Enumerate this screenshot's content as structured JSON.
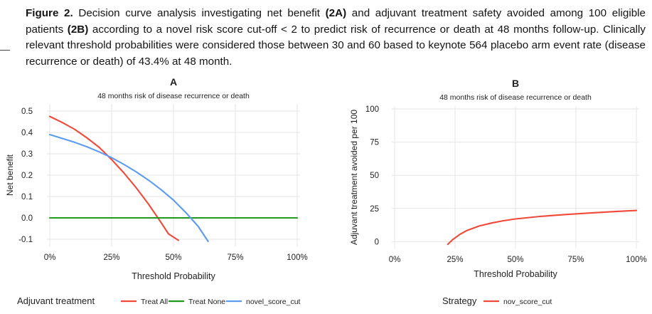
{
  "caption": {
    "figure_label": "Figure 2.",
    "segments": [
      {
        "t": " Decision curve analysis investigating net benefit ",
        "b": false
      },
      {
        "t": "(2A)",
        "b": true
      },
      {
        "t": " and adjuvant treatment safety avoided among 100 eligible patients ",
        "b": false
      },
      {
        "t": "(2B)",
        "b": true
      },
      {
        "t": " according to a novel risk score cut-off < 2 to predict risk of recurrence or death at 48 months follow-up. Clinically relevant threshold probabilities were considered those between 30 and 60 based to keynote 564 placebo arm event rate (disease recurrence or death) of 43.4% at 48 month.",
        "b": false
      }
    ]
  },
  "colors": {
    "treat_all": "#f0493a",
    "treat_none": "#1f9a1f",
    "novel_score_cut": "#5b9cf0",
    "nov_score_cut": "#f0493a",
    "grid": "#e6e6e6"
  },
  "chart_data": [
    {
      "type": "line",
      "panel_letter": "A",
      "title": "48 months risk of disease recurrence or death",
      "xlabel": "Threshold Probability",
      "ylabel": "Net benefit",
      "xlim": [
        0,
        100
      ],
      "ylim": [
        -0.12,
        0.52
      ],
      "x_ticks": [
        0,
        25,
        50,
        75,
        100
      ],
      "x_tick_labels": [
        "0%",
        "25%",
        "50%",
        "75%",
        "100%"
      ],
      "y_ticks": [
        -0.1,
        0.0,
        0.1,
        0.2,
        0.3,
        0.4,
        0.5
      ],
      "y_tick_labels": [
        "-0.1",
        "0.0",
        "0.1",
        "0.2",
        "0.3",
        "0.4",
        "0.5"
      ],
      "grid": true,
      "legend_title": "Adjuvant treatment",
      "legend_position": "bottom",
      "series": [
        {
          "name": "Treat All",
          "color_key": "treat_all",
          "x": [
            0,
            5,
            10,
            15,
            20,
            25,
            30,
            35,
            40,
            45,
            48,
            52
          ],
          "y": [
            0.475,
            0.447,
            0.415,
            0.375,
            0.33,
            0.273,
            0.21,
            0.14,
            0.063,
            -0.022,
            -0.075,
            -0.105
          ]
        },
        {
          "name": "Treat None",
          "color_key": "treat_none",
          "x": [
            0,
            100
          ],
          "y": [
            0.0,
            0.0
          ]
        },
        {
          "name": "novel_score_cut",
          "color_key": "novel_score_cut",
          "x": [
            0,
            5,
            10,
            15,
            20,
            25,
            30,
            35,
            40,
            45,
            50,
            55,
            60,
            64
          ],
          "y": [
            0.39,
            0.372,
            0.354,
            0.333,
            0.309,
            0.282,
            0.25,
            0.215,
            0.176,
            0.132,
            0.083,
            0.025,
            -0.04,
            -0.11
          ]
        }
      ]
    },
    {
      "type": "line",
      "panel_letter": "B",
      "title": "48 months risk of disease recurrence or death",
      "xlabel": "Threshold Probability",
      "ylabel": "Adjuvant treatment avoided per 100",
      "xlim": [
        0,
        100
      ],
      "ylim": [
        -3,
        100
      ],
      "x_ticks": [
        0,
        25,
        50,
        75,
        100
      ],
      "x_tick_labels": [
        "0%",
        "25%",
        "50%",
        "75%",
        "100%"
      ],
      "y_ticks": [
        0,
        25,
        50,
        75,
        100
      ],
      "y_tick_labels": [
        "0",
        "25",
        "50",
        "75",
        "100"
      ],
      "grid": true,
      "legend_title": "Strategy",
      "legend_position": "bottom",
      "series": [
        {
          "name": "nov_score_cut",
          "color_key": "nov_score_cut",
          "x": [
            22,
            24,
            27,
            30,
            35,
            40,
            45,
            50,
            60,
            70,
            80,
            90,
            100
          ],
          "y": [
            -2,
            1.5,
            5.5,
            8.5,
            11.8,
            14.0,
            15.8,
            17.1,
            19.0,
            20.4,
            21.5,
            22.6,
            23.5
          ]
        }
      ]
    }
  ]
}
